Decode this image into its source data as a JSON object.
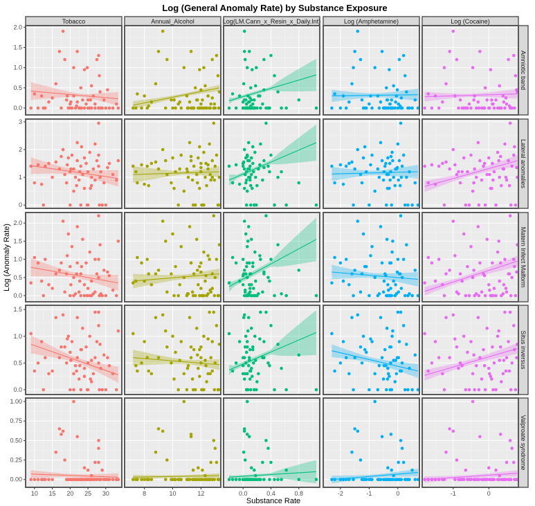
{
  "chart_data": {
    "type": "scatter",
    "title": "Log (General Anomaly Rate) by Substance Exposure",
    "xlabel": "Substance Rate",
    "ylabel": "Log (Anomaly Rate)",
    "facet_cols": [
      {
        "label": "Tobacco",
        "color": "#F8766D",
        "xlim": [
          7.5,
          34.5
        ],
        "ticks": [
          10,
          15,
          20,
          25,
          30
        ],
        "tick_labels": [
          "10",
          "15",
          "20",
          "25",
          "30"
        ]
      },
      {
        "label": "Annual_Alcohol",
        "color": "#A3A500",
        "xlim": [
          6.6,
          13.4
        ],
        "ticks": [
          8,
          10,
          12
        ],
        "tick_labels": [
          "8",
          "10",
          "12"
        ]
      },
      {
        "label": "Log(LM.Cann_x_Resin_x_Daily.Int)",
        "color": "#00BF7D",
        "xlim": [
          -0.28,
          1.1
        ],
        "ticks": [
          0,
          0.4,
          0.8
        ],
        "tick_labels": [
          "0.0",
          "0.4",
          "0.8"
        ]
      },
      {
        "label": "Log (Amphetamine)",
        "color": "#00B0F6",
        "xlim": [
          -2.6,
          0.75
        ],
        "ticks": [
          -2,
          -1,
          0
        ],
        "tick_labels": [
          "-2",
          "-1",
          "0"
        ]
      },
      {
        "label": "Log (Cocaine)",
        "color": "#E76BF3",
        "xlim": [
          -1.87,
          0.83
        ],
        "ticks": [
          -1,
          0
        ],
        "tick_labels": [
          "-1",
          "0"
        ]
      }
    ],
    "facet_rows": [
      {
        "label": "Amniotic band",
        "ylim": [
          -0.17,
          2.04
        ],
        "ticks": [
          0,
          0.5,
          1,
          1.5,
          2
        ],
        "tick_labels": [
          "0.0",
          "0.5",
          "1.0",
          "1.5",
          "2.0"
        ]
      },
      {
        "label": "Lateral anomalies",
        "ylim": [
          -0.12,
          3.1
        ],
        "ticks": [
          0,
          1,
          2,
          3
        ],
        "tick_labels": [
          "0",
          "1",
          "2",
          "3"
        ]
      },
      {
        "label": "Matern Infect Malform",
        "ylim": [
          -0.17,
          2.29
        ],
        "ticks": [
          0,
          0.5,
          1,
          1.5,
          2
        ],
        "tick_labels": [
          "0.0",
          "0.5",
          "1.0",
          "1.5",
          "2.0"
        ]
      },
      {
        "label": "Situs inversus",
        "ylim": [
          -0.09,
          1.58
        ],
        "ticks": [
          0,
          0.5,
          1,
          1.5
        ],
        "tick_labels": [
          "0.0",
          "0.5",
          "1.0",
          "1.5"
        ]
      },
      {
        "label": "Valproate syndrome",
        "ylim": [
          -0.1,
          1.045
        ],
        "ticks": [
          0,
          0.25,
          0.5,
          0.75,
          1
        ],
        "tick_labels": [
          "0.00",
          "0.25",
          "0.50",
          "0.75",
          "1.00"
        ]
      }
    ],
    "x": [
      [
        9,
        10,
        11,
        12,
        13,
        14,
        16,
        17,
        18,
        18.5,
        19,
        19.5,
        20,
        20,
        20.5,
        21,
        21,
        21.5,
        22,
        22,
        22.5,
        23,
        23,
        23.5,
        24,
        24,
        24.5,
        25,
        25,
        25.5,
        26,
        26,
        26.5,
        27,
        27,
        27.5,
        28,
        28,
        28,
        28.2,
        28.4,
        28.6,
        29,
        29.5,
        30,
        31,
        32,
        33,
        33.5,
        20.2,
        21.8,
        23.2,
        24.8,
        19.2,
        22.7,
        25.7,
        17.5,
        15,
        12.5,
        30.5
      ],
      [
        7.2,
        7.5,
        7.8,
        8,
        8.2,
        8.5,
        8.8,
        9,
        9.3,
        9.6,
        9.9,
        10,
        10.2,
        10.4,
        10.6,
        10.8,
        11,
        11.1,
        11.2,
        11.3,
        11.4,
        11.5,
        11.6,
        11.7,
        11.8,
        11.9,
        12,
        12,
        12.1,
        12.2,
        12.3,
        12.4,
        12.5,
        12.6,
        12.7,
        12.8,
        12.9,
        13,
        13.1,
        13.2,
        13.3,
        11.05,
        11.45,
        11.75,
        12.05,
        12.35,
        12.65,
        12.95,
        9.5,
        10.5,
        8.3,
        11.9,
        12.2,
        12.5,
        7.4,
        10.1,
        11.3,
        12.8,
        13.25,
        12.0
      ],
      [
        -0.2,
        -0.15,
        -0.1,
        -0.05,
        0,
        0,
        0.01,
        0.02,
        0.02,
        0.03,
        0.04,
        0.04,
        0.05,
        0.05,
        0.06,
        0.06,
        0.07,
        0.08,
        0.08,
        0.09,
        0.1,
        0.1,
        0.11,
        0.12,
        0.12,
        0.13,
        0.14,
        0.15,
        0.16,
        0.17,
        0.18,
        0.2,
        0.22,
        0.25,
        0.28,
        0.3,
        0.33,
        0.36,
        0.4,
        0.45,
        0.5,
        0.55,
        0.62,
        0.8,
        1.05,
        0.0,
        0.03,
        0.05,
        0.07,
        0.09,
        0.11,
        0.14,
        0.19,
        0.24,
        0.38,
        0.02,
        0.06,
        0.1,
        0.16,
        0.3
      ],
      [
        -2.3,
        -2.2,
        -2.0,
        -1.9,
        -1.8,
        -1.7,
        -1.6,
        -1.5,
        -1.4,
        -1.3,
        -1.25,
        -1.2,
        -1.1,
        -1.0,
        -0.9,
        -0.8,
        -0.7,
        -0.65,
        -0.6,
        -0.55,
        -0.5,
        -0.45,
        -0.4,
        -0.38,
        -0.35,
        -0.3,
        -0.28,
        -0.25,
        -0.22,
        -0.2,
        -0.15,
        -0.1,
        -0.05,
        0,
        0.02,
        0.05,
        0.1,
        0.15,
        0.2,
        0.25,
        0.3,
        0.4,
        0.5,
        0.6,
        0.7,
        -0.42,
        -0.33,
        -0.27,
        -0.18,
        -0.08,
        0.08,
        -1.15,
        -1.55,
        -0.95,
        -0.48,
        -0.36,
        -0.24,
        0.12,
        0.35,
        -0.02
      ],
      [
        -1.8,
        -1.7,
        -1.6,
        -1.5,
        -1.4,
        -1.3,
        -1.2,
        -1.1,
        -1.0,
        -0.9,
        -0.8,
        -0.7,
        -0.6,
        -0.55,
        -0.5,
        -0.45,
        -0.4,
        -0.35,
        -0.3,
        -0.25,
        -0.2,
        -0.15,
        -0.1,
        -0.05,
        0,
        0.05,
        0.1,
        0.15,
        0.2,
        0.25,
        0.3,
        0.35,
        0.4,
        0.45,
        0.5,
        0.55,
        0.6,
        0.65,
        0.7,
        0.75,
        0.8,
        -0.85,
        -0.65,
        -0.42,
        -0.28,
        -0.12,
        0.02,
        0.12,
        0.28,
        0.42,
        0.58,
        0.72,
        -1.25,
        -0.95,
        -0.75,
        0.08,
        0.33,
        0.48,
        0.62,
        0.78
      ]
    ],
    "y": [
      [
        0,
        0.35,
        0,
        0.3,
        0,
        0.15,
        0.6,
        1.4,
        1.9,
        1.2,
        0.2,
        0,
        0,
        0.1,
        0,
        1.0,
        0.3,
        0,
        0.15,
        1.4,
        0,
        0,
        0.5,
        0.2,
        0,
        0.95,
        0.1,
        0,
        0.2,
        0,
        0.55,
        0,
        0.3,
        0,
        0.1,
        1.2,
        0,
        0,
        1.3,
        0.8,
        0.4,
        0,
        0,
        0.2,
        0,
        0,
        0,
        0.1,
        0,
        0.15,
        0.05,
        0,
        1.0,
        0.3,
        0,
        0.2,
        0,
        0.25,
        0,
        0.45
      ],
      [
        1.4,
        0.8,
        1.45,
        0.75,
        1.4,
        1.5,
        1.55,
        1.3,
        2.0,
        1.1,
        0.8,
        1.7,
        1.2,
        0,
        1.8,
        0.5,
        1.3,
        1.0,
        2.25,
        1.6,
        0.9,
        1.4,
        0,
        1.1,
        1.7,
        0.6,
        1.5,
        1.2,
        0,
        1.9,
        1.0,
        0.7,
        1.3,
        2.2,
        0.9,
        1.6,
        2.95,
        1.4,
        1.8,
        0,
        1.0,
        1.2,
        0,
        0.8,
        0,
        1.5,
        1.1,
        0.9,
        1.6,
        1.3,
        0.7,
        2.1,
        0,
        1.45,
        1.2,
        0.6,
        1.75,
        1.0,
        0,
        1.35
      ],
      [
        0.35,
        1.05,
        0.9,
        0.4,
        1.0,
        0.3,
        0.6,
        0.7,
        2.05,
        0.1,
        0.6,
        1.7,
        0.8,
        0,
        1.35,
        0.5,
        0,
        0.05,
        1.9,
        0.9,
        0.1,
        0.6,
        0,
        1.55,
        0.3,
        0,
        0.9,
        0.2,
        0,
        1.2,
        0.4,
        0,
        0.05,
        1.0,
        0.1,
        0.6,
        2.2,
        0.5,
        1.0,
        0,
        1.4,
        0.05,
        0,
        0.7,
        0,
        0.55,
        0.15,
        0,
        1.5,
        0.3,
        0.6,
        0.8,
        0,
        1.1,
        0.4,
        0,
        0.9,
        0.2,
        0,
        0.65
      ],
      [
        1.05,
        0.35,
        0.5,
        0.9,
        0.6,
        0.3,
        1.35,
        0.6,
        1.4,
        0.8,
        0.5,
        1.0,
        0.7,
        0,
        0.9,
        0.3,
        0,
        0.45,
        1.35,
        0.6,
        0.2,
        0.75,
        0,
        1.15,
        0.4,
        0.25,
        0.8,
        0.5,
        0,
        1.0,
        0.55,
        0.15,
        0.3,
        1.45,
        0.6,
        0.9,
        1.45,
        0.5,
        1.2,
        0,
        0.85,
        0.4,
        0,
        0.65,
        0,
        0.45,
        0.3,
        0,
        1.1,
        0.55,
        0.35,
        0.75,
        0,
        0.95,
        0.45,
        0.2,
        0.8,
        0.35,
        0,
        0.6
      ],
      [
        0,
        0,
        0,
        0,
        0,
        0,
        0.35,
        0.65,
        0.62,
        0.25,
        0,
        0,
        0,
        0,
        0,
        1.0,
        0,
        0,
        0,
        0.55,
        0,
        0,
        0,
        0,
        0.15,
        0,
        0,
        0,
        0.12,
        0,
        0.05,
        0,
        0,
        0,
        0.22,
        0,
        0.5,
        0.4,
        0.22,
        0,
        0,
        0,
        0.12,
        0,
        0,
        0,
        0,
        0,
        0,
        0,
        0,
        0,
        0,
        0,
        0,
        0,
        0.58,
        0,
        0,
        0
      ]
    ],
    "fits": [
      [
        {
          "y0": 0.42,
          "y1": 0.23,
          "ci": [
            0.22,
            0.05,
            0.17
          ]
        },
        {
          "y0": 0.07,
          "y1": 0.5,
          "ci": [
            0.1,
            0.04,
            0.08
          ]
        },
        {
          "y0": 0.18,
          "y1": 0.82,
          "ci": [
            0.08,
            0.06,
            0.4
          ]
        },
        {
          "y0": 0.3,
          "y1": 0.33,
          "ci": [
            0.15,
            0.05,
            0.15
          ]
        },
        {
          "y0": 0.28,
          "y1": 0.35,
          "ci": [
            0.12,
            0.04,
            0.12
          ]
        }
      ],
      [
        {
          "y0": 1.42,
          "y1": 0.96,
          "ci": [
            0.3,
            0.1,
            0.3
          ]
        },
        {
          "y0": 1.1,
          "y1": 1.2,
          "ci": [
            0.3,
            0.08,
            0.2
          ]
        },
        {
          "y0": 0.9,
          "y1": 2.25,
          "ci": [
            0.2,
            0.1,
            0.65
          ]
        },
        {
          "y0": 1.12,
          "y1": 1.2,
          "ci": [
            0.25,
            0.08,
            0.25
          ]
        },
        {
          "y0": 0.67,
          "y1": 1.6,
          "ci": [
            0.2,
            0.08,
            0.2
          ]
        }
      ],
      [
        {
          "y0": 0.78,
          "y1": 0.35,
          "ci": [
            0.25,
            0.07,
            0.22
          ]
        },
        {
          "y0": 0.4,
          "y1": 0.6,
          "ci": [
            0.2,
            0.07,
            0.15
          ]
        },
        {
          "y0": 0.25,
          "y1": 1.55,
          "ci": [
            0.15,
            0.1,
            0.6
          ]
        },
        {
          "y0": 0.65,
          "y1": 0.45,
          "ci": [
            0.2,
            0.07,
            0.2
          ]
        },
        {
          "y0": 0.12,
          "y1": 0.95,
          "ci": [
            0.12,
            0.07,
            0.15
          ]
        }
      ],
      [
        {
          "y0": 0.85,
          "y1": 0.28,
          "ci": [
            0.17,
            0.05,
            0.15
          ]
        },
        {
          "y0": 0.6,
          "y1": 0.47,
          "ci": [
            0.15,
            0.05,
            0.1
          ]
        },
        {
          "y0": 0.37,
          "y1": 1.07,
          "ci": [
            0.1,
            0.06,
            0.42
          ]
        },
        {
          "y0": 0.73,
          "y1": 0.35,
          "ci": [
            0.12,
            0.05,
            0.13
          ]
        },
        {
          "y0": 0.27,
          "y1": 0.77,
          "ci": [
            0.1,
            0.05,
            0.1
          ]
        }
      ],
      [
        {
          "y0": 0.07,
          "y1": 0.03,
          "ci": [
            0.05,
            0.02,
            0.05
          ]
        },
        {
          "y0": 0.03,
          "y1": 0.05,
          "ci": [
            0.03,
            0.015,
            0.03
          ]
        },
        {
          "y0": 0.03,
          "y1": 0.1,
          "ci": [
            0.03,
            0.025,
            0.15
          ]
        },
        {
          "y0": 0.0,
          "y1": 0.09,
          "ci": [
            0.05,
            0.02,
            0.05
          ]
        },
        {
          "y0": 0.0,
          "y1": 0.08,
          "ci": [
            0.04,
            0.02,
            0.04
          ]
        }
      ]
    ]
  }
}
